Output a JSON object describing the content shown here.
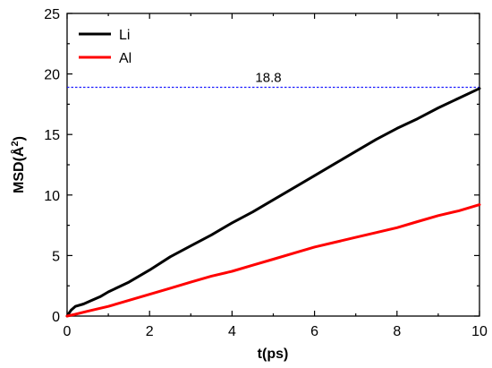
{
  "chart_data": {
    "type": "line",
    "xlabel": "t(ps)",
    "ylabel_main": "MSD(",
    "ylabel_unit": "Å",
    "ylabel_sup": "2",
    "ylabel_close": ")",
    "xlim": [
      0,
      10
    ],
    "ylim": [
      0,
      25
    ],
    "xticks": [
      "0",
      "2",
      "4",
      "6",
      "8",
      "10"
    ],
    "yticks": [
      "0",
      "5",
      "10",
      "15",
      "20",
      "25"
    ],
    "legend_position": "top-left",
    "grid": false,
    "series": [
      {
        "name": "Li",
        "color": "#000000",
        "x": [
          0,
          0.1,
          0.2,
          0.4,
          0.6,
          0.8,
          1.0,
          1.5,
          2.0,
          2.5,
          3.0,
          3.5,
          4.0,
          4.5,
          5.0,
          5.5,
          6.0,
          6.5,
          7.0,
          7.5,
          8.0,
          8.5,
          9.0,
          9.5,
          10.0
        ],
        "y": [
          0.0,
          0.5,
          0.8,
          1.0,
          1.3,
          1.6,
          2.0,
          2.8,
          3.8,
          4.9,
          5.8,
          6.7,
          7.7,
          8.6,
          9.6,
          10.6,
          11.6,
          12.6,
          13.6,
          14.6,
          15.5,
          16.3,
          17.2,
          18.0,
          18.8
        ]
      },
      {
        "name": "Al",
        "color": "#ff0000",
        "x": [
          0,
          0.2,
          0.5,
          1.0,
          1.5,
          2.0,
          2.5,
          3.0,
          3.5,
          4.0,
          4.5,
          5.0,
          5.5,
          6.0,
          6.5,
          7.0,
          7.5,
          8.0,
          8.5,
          9.0,
          9.5,
          10.0
        ],
        "y": [
          0.0,
          0.15,
          0.4,
          0.8,
          1.3,
          1.8,
          2.3,
          2.8,
          3.3,
          3.7,
          4.2,
          4.7,
          5.2,
          5.7,
          6.1,
          6.5,
          6.9,
          7.3,
          7.8,
          8.3,
          8.7,
          9.2
        ]
      }
    ],
    "reference_line": {
      "y": 18.9,
      "color": "#1a1aff",
      "label": "18.8"
    }
  }
}
